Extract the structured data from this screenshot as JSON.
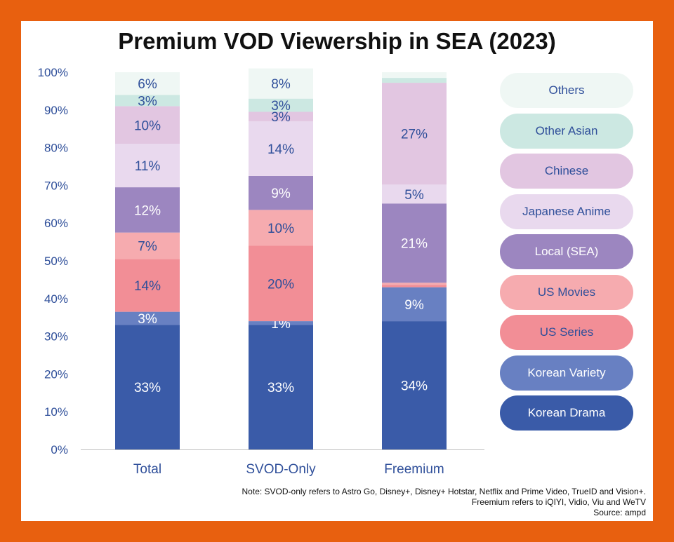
{
  "title": "Premium VOD Viewership in SEA (2023)",
  "note_lines": [
    "Note: SVOD-only refers to Astro Go, Disney+, Disney+ Hotstar, Netflix and Prime Video, TrueID and Vision+.",
    "Freemium refers to iQIYI, Vidio, Viu and WeTV",
    "Source: ampd"
  ],
  "colors": {
    "frame": "#E8600F",
    "axis_text": "#2F4F9A"
  },
  "chart_data": {
    "type": "bar",
    "stacked": true,
    "title": "Premium VOD Viewership in SEA (2023)",
    "categories": [
      "Total",
      "SVOD-Only",
      "Freemium"
    ],
    "ylim": [
      0,
      100
    ],
    "yticks": [
      0,
      10,
      20,
      30,
      40,
      50,
      60,
      70,
      80,
      90,
      100
    ],
    "ytick_labels": [
      "0%",
      "10%",
      "20%",
      "30%",
      "40%",
      "50%",
      "60%",
      "70%",
      "80%",
      "90%",
      "100%"
    ],
    "legend_position": "right",
    "series": [
      {
        "name": "Korean Drama",
        "color": "#3A5BA8",
        "text_color": "#FFFFFF",
        "values": [
          33,
          33,
          34
        ],
        "labels": [
          "33%",
          "33%",
          "34%"
        ]
      },
      {
        "name": "Korean Variety",
        "color": "#6880C2",
        "text_color": "#FFFFFF",
        "values": [
          3.5,
          1,
          9
        ],
        "labels": [
          "3%",
          "1%",
          "9%"
        ]
      },
      {
        "name": "US Series",
        "color": "#F28E96",
        "text_color": "#2F4F9A",
        "values": [
          14,
          20,
          0.6
        ],
        "labels": [
          "14%",
          "20%",
          ""
        ]
      },
      {
        "name": "US Movies",
        "color": "#F6ABAF",
        "text_color": "#2F4F9A",
        "values": [
          7,
          9.5,
          0.6
        ],
        "labels": [
          "7%",
          "10%",
          ""
        ]
      },
      {
        "name": "Local (SEA)",
        "color": "#9C86C0",
        "text_color": "#FFFFFF",
        "values": [
          12,
          9,
          21
        ],
        "labels": [
          "12%",
          "9%",
          "21%"
        ]
      },
      {
        "name": "Japanese Anime",
        "color": "#E9D9EE",
        "text_color": "#2F4F9A",
        "values": [
          11.5,
          14.5,
          5
        ],
        "labels": [
          "11%",
          "14%",
          "5%"
        ]
      },
      {
        "name": "Chinese",
        "color": "#E2C6E1",
        "text_color": "#2F4F9A",
        "values": [
          10,
          2.5,
          27
        ],
        "labels": [
          "10%",
          "3%",
          "27%"
        ]
      },
      {
        "name": "Other Asian",
        "color": "#CCE8E2",
        "text_color": "#2F4F9A",
        "values": [
          3,
          3.5,
          1.3
        ],
        "labels": [
          "3%",
          "3%",
          ""
        ]
      },
      {
        "name": "Others",
        "color": "#EFF7F4",
        "text_color": "#2F4F9A",
        "values": [
          6,
          8,
          1.5
        ],
        "labels": [
          "6%",
          "8%",
          ""
        ]
      }
    ]
  }
}
